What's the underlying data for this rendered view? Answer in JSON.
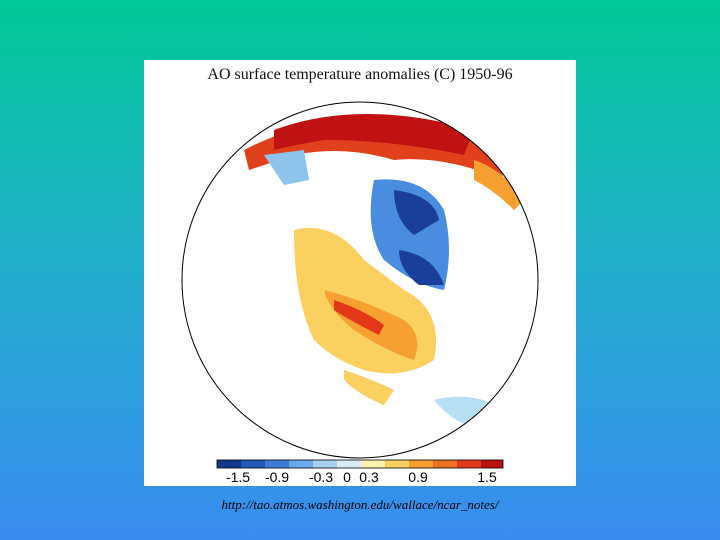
{
  "title": "AO surface temperature anomalies (C) 1950-96",
  "colorbar": {
    "labels": [
      "-1.5",
      "-0.9",
      "-0.3",
      "0",
      "0.3",
      "0.9",
      "1.5"
    ]
  },
  "source_url": "http://tao.atmos.washington.edu/wallace/ncar_notes/"
}
